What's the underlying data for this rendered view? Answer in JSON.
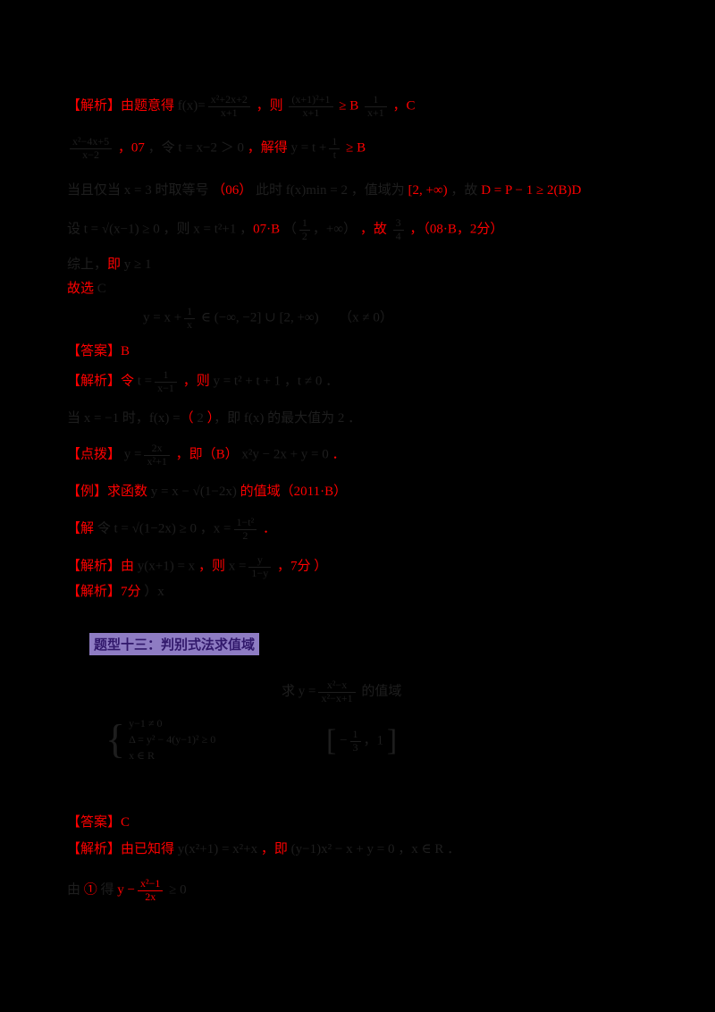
{
  "heading": {
    "text": "题型十三：判别式法求值域"
  },
  "palette": {
    "answer_red": "#ff0000",
    "print_black": "#1e1e1e",
    "heading_bg": "#8e7cc3",
    "heading_fg": "#31186b"
  },
  "lines": [
    {
      "t": 105,
      "segs": [
        {
          "r": "【解析】由题意得 "
        },
        {
          "k": "f(x)="
        },
        {
          "fk": [
            "x²+2x+2",
            "x+1"
          ]
        },
        {
          "r": " ，则 "
        },
        {
          "fk": [
            "(x+1)²+1",
            "x+1"
          ]
        },
        {
          "r": " ≥ B "
        },
        {
          "fk": [
            "1",
            "x+1"
          ]
        },
        {
          "r": " ，C"
        }
      ]
    },
    {
      "t": 152,
      "segs": [
        {
          "fk": [
            "x²−4x+5",
            "x−2"
          ]
        },
        {
          "r": " ，07 "
        },
        {
          "k": "，令 t = x−2 ＞ 0"
        },
        {
          "r": " ，解得 "
        },
        {
          "k": "y = t +"
        },
        {
          "fk": [
            "1",
            "t"
          ]
        },
        {
          "r": " ≥ B"
        }
      ]
    },
    {
      "t": 203,
      "segs": [
        {
          "k": "当且仅当 x = 3 时取等号"
        },
        {
          "r": " （06） "
        },
        {
          "k": "此时 f(x)min = 2 ，值域为"
        },
        {
          "r": " [2, +∞) "
        },
        {
          "k": "，故 "
        },
        {
          "r": "D = P − 1 ≥ 2(B)D"
        }
      ]
    },
    {
      "t": 243,
      "segs": [
        {
          "k": "设 t = √(x−1) ≥ 0 ，则 x = t²+1 ，"
        },
        {
          "r": "07·B "
        },
        {
          "k": "（"
        },
        {
          "fk": [
            "1",
            "2"
          ]
        },
        {
          "k": "，+∞）"
        },
        {
          "r": " ，故 "
        },
        {
          "fk": [
            "3",
            "4"
          ]
        },
        {
          "r": " ，（08·B，2分）"
        }
      ]
    },
    {
      "t": 286,
      "segs": [
        {
          "k": "综上，"
        },
        {
          "r": "即 "
        },
        {
          "k": "y ≥ 1"
        }
      ]
    },
    {
      "t": 313,
      "segs": [
        {
          "r": "故选 "
        },
        {
          "k": "C"
        }
      ]
    },
    {
      "t": 342,
      "l": 160,
      "segs": [
        {
          "k": "y = x +"
        },
        {
          "fk": [
            "1",
            "x"
          ]
        },
        {
          "k": " ∈ (−∞, −2] ∪ [2, +∞)"
        },
        {
          "k": "　　（x ≠ 0）"
        }
      ]
    },
    {
      "t": 383,
      "segs": [
        {
          "r": "【答案】B"
        }
      ]
    },
    {
      "t": 413,
      "segs": [
        {
          "r": "【解析】令 "
        },
        {
          "k": "t ="
        },
        {
          "fk": [
            "1",
            "x−1"
          ]
        },
        {
          "r": " ，则 "
        },
        {
          "k": "y = t² + t + 1 ，t ≠ 0 ．"
        }
      ]
    },
    {
      "t": 458,
      "segs": [
        {
          "k": "当 x = −1 时，f(x) ="
        },
        {
          "r": "（ "
        },
        {
          "k": "2"
        },
        {
          "r": " ）"
        },
        {
          "k": "，即 f(x) 的最大值为 2 ．"
        }
      ]
    },
    {
      "t": 495,
      "segs": [
        {
          "r": "【点拨】"
        },
        {
          "k": " y ="
        },
        {
          "fk": [
            "2x",
            "x²+1"
          ]
        },
        {
          "r": " ，即（B） "
        },
        {
          "k": "x²y − 2x + y = 0"
        },
        {
          "r": " ．"
        }
      ]
    },
    {
      "t": 540,
      "segs": [
        {
          "r": "【例】求函数 "
        },
        {
          "k": "y = x − √(1−2x)"
        },
        {
          "r": " 的值域（2011·B）"
        }
      ]
    },
    {
      "t": 578,
      "segs": [
        {
          "r": "【解 "
        },
        {
          "k": "令 t = √(1−2x) ≥ 0 ，x ="
        },
        {
          "fk": [
            "1−t²",
            "2"
          ]
        },
        {
          "r": " ．"
        }
      ]
    },
    {
      "t": 620,
      "segs": [
        {
          "r": "【解析】由 "
        },
        {
          "k": "y(x+1) = x"
        },
        {
          "r": " ，则 "
        },
        {
          "k": "x ="
        },
        {
          "fk": [
            "y",
            "1−y"
          ]
        },
        {
          "r": " ，7分 ）"
        }
      ]
    },
    {
      "t": 652,
      "segs": [
        {
          "r": "【解析】7分 "
        },
        {
          "k": "）x"
        }
      ]
    },
    {
      "t": 760,
      "l": 315,
      "segs": [
        {
          "k": "求 y ="
        },
        {
          "fk": [
            "x²−x",
            "x²−x+1"
          ]
        },
        {
          "k": " 的值域"
        }
      ]
    },
    {
      "t": 800,
      "l": 118,
      "segs": [
        {
          "stack": {
            "brace": "{",
            "rows": [
              "y−1 ≠ 0",
              "Δ = y² − 4(y−1)² ≥ 0",
              "x ∈ R"
            ]
          }
        }
      ]
    },
    {
      "t": 812,
      "l": 365,
      "segs": [
        {
          "big": "["
        },
        {
          "k": " −"
        },
        {
          "fk": [
            "1",
            "3"
          ]
        },
        {
          "k": "，1 "
        },
        {
          "big": "]"
        }
      ]
    },
    {
      "t": 910,
      "segs": [
        {
          "r": "【答案】C"
        }
      ]
    },
    {
      "t": 940,
      "segs": [
        {
          "r": "【解析】由已知得 "
        },
        {
          "k": "y(x²+1) = x²+x"
        },
        {
          "r": " ，即 "
        },
        {
          "k": "(y−1)x² − x + y = 0 ，x ∈ R ．"
        }
      ]
    },
    {
      "t": 982,
      "segs": [
        {
          "k": "由 "
        },
        {
          "r": "① "
        },
        {
          "k": "得 "
        },
        {
          "r": "y −"
        },
        {
          "fr": [
            "x²−1",
            "2x"
          ]
        },
        {
          "k": " ≥ 0"
        }
      ]
    }
  ]
}
